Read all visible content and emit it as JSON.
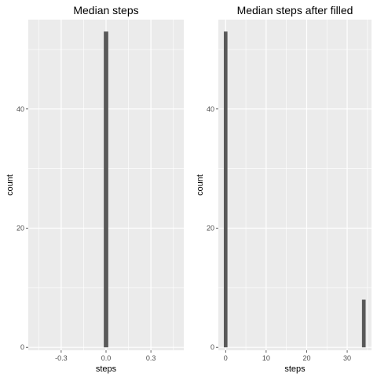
{
  "chart_data": [
    {
      "type": "bar",
      "title": "Median steps",
      "xlabel": "steps",
      "ylabel": "count",
      "x_ticks": [
        -0.3,
        0.0,
        0.3
      ],
      "x_tick_labels": [
        "-0.3",
        "0.0",
        "0.3"
      ],
      "y_ticks": [
        0,
        20,
        40
      ],
      "y_tick_labels": [
        "0",
        "20",
        "40"
      ],
      "xlim": [
        -0.52,
        0.52
      ],
      "ylim": [
        -0.5,
        55
      ],
      "bars": [
        {
          "x": 0.0,
          "width": 0.03,
          "count": 53
        }
      ],
      "grid": true,
      "panel_background": "#ebebeb",
      "bar_color": "#595959",
      "grid_color": "#ffffff"
    },
    {
      "type": "bar",
      "title": "Median steps after filled",
      "xlabel": "steps",
      "ylabel": "count",
      "x_ticks": [
        0,
        10,
        20,
        30
      ],
      "x_tick_labels": [
        "0",
        "10",
        "20",
        "30"
      ],
      "y_ticks": [
        0,
        20,
        40
      ],
      "y_tick_labels": [
        "0",
        "20",
        "40"
      ],
      "xlim": [
        -1.8,
        36
      ],
      "ylim": [
        -0.5,
        55
      ],
      "bars": [
        {
          "x": 0.0,
          "width": 0.9,
          "count": 53
        },
        {
          "x": 34.1,
          "width": 0.9,
          "count": 8
        }
      ],
      "grid": true,
      "panel_background": "#ebebeb",
      "bar_color": "#595959",
      "grid_color": "#ffffff"
    }
  ]
}
